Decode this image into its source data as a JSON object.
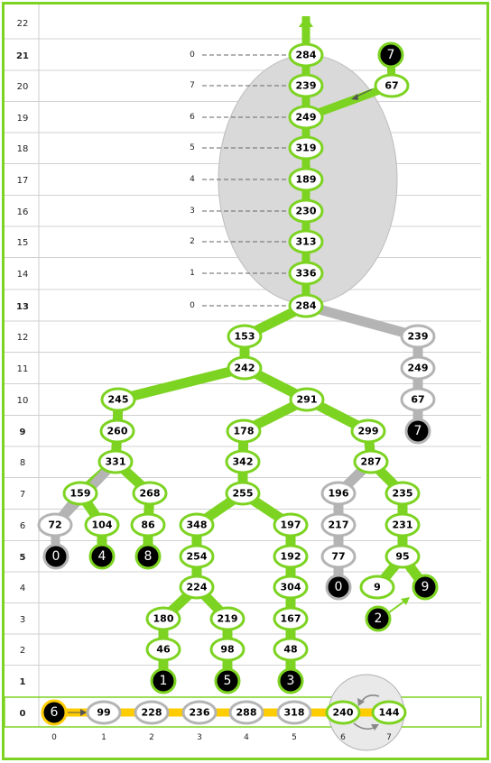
{
  "levels": [
    {
      "label": "22",
      "bold": false
    },
    {
      "label": "21",
      "bold": true
    },
    {
      "label": "20",
      "bold": false
    },
    {
      "label": "19",
      "bold": false
    },
    {
      "label": "18",
      "bold": false
    },
    {
      "label": "17",
      "bold": false
    },
    {
      "label": "16",
      "bold": false
    },
    {
      "label": "15",
      "bold": false
    },
    {
      "label": "14",
      "bold": false
    },
    {
      "label": "13",
      "bold": true
    },
    {
      "label": "12",
      "bold": false
    },
    {
      "label": "11",
      "bold": false
    },
    {
      "label": "10",
      "bold": false
    },
    {
      "label": "9",
      "bold": true
    },
    {
      "label": "8",
      "bold": false
    },
    {
      "label": "7",
      "bold": false
    },
    {
      "label": "6",
      "bold": false
    },
    {
      "label": "5",
      "bold": true
    },
    {
      "label": "4",
      "bold": false
    },
    {
      "label": "3",
      "bold": false
    },
    {
      "label": "2",
      "bold": false
    },
    {
      "label": "1",
      "bold": true
    },
    {
      "label": "0",
      "bold": true
    }
  ],
  "bottom_index_labels": [
    "0",
    "1",
    "2",
    "3",
    "4",
    "5",
    "6",
    "7"
  ],
  "dashed_labels": [
    "0",
    "7",
    "6",
    "5",
    "4",
    "3",
    "2",
    "1",
    "0"
  ],
  "colors": {
    "green": "#7dd321",
    "gray": "#b4b4b4",
    "yellow": "#ffcc00",
    "terminal": "#000000",
    "frame": "#7dd321",
    "ellipse": "#d9d9d9"
  },
  "nodes": {
    "top": [
      "284",
      "239",
      "249",
      "319",
      "189",
      "230",
      "313",
      "336",
      "284"
    ],
    "side": [
      "67"
    ],
    "main": [
      "153",
      "242",
      "245",
      "291",
      "260",
      "178",
      "299",
      "331",
      "342",
      "287",
      "159",
      "268",
      "255",
      "235",
      "104",
      "86",
      "348",
      "197",
      "231",
      "254",
      "192",
      "95",
      "224",
      "304",
      "9",
      "180",
      "219",
      "167",
      "46",
      "98",
      "48"
    ],
    "gray": [
      "239",
      "249",
      "67",
      "196",
      "217",
      "77",
      "72"
    ],
    "bottom": [
      "99",
      "228",
      "236",
      "288",
      "318",
      "240",
      "144"
    ]
  },
  "terminals": [
    "7",
    "7",
    "0",
    "4",
    "8",
    "0",
    "9",
    "2",
    "1",
    "5",
    "3",
    "6"
  ]
}
